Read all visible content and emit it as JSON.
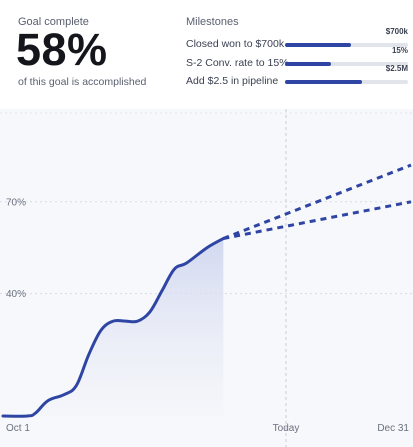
{
  "goal": {
    "label": "Goal complete",
    "value": "58%",
    "description": "of this goal is accomplished"
  },
  "milestones": {
    "title": "Milestones",
    "items": [
      {
        "label": "Closed won to $700k",
        "value": "$700k",
        "progress": 0.54
      },
      {
        "label": "S-2 Conv. rate to 15%",
        "value": "15%",
        "progress": 0.37
      },
      {
        "label": "Add $2.5 in pipeline",
        "value": "$2.5M",
        "progress": 0.63
      }
    ]
  },
  "colors": {
    "accent": "#2f45a3",
    "track": "#e1e4ea",
    "panel": "#f7f8fb"
  },
  "chart_data": {
    "type": "line",
    "y_ticks": [
      {
        "label": "70%",
        "value": 70
      },
      {
        "label": "40%",
        "value": 40
      }
    ],
    "x_ticks": [
      "Oct 1",
      "Today",
      "Dec 31"
    ],
    "grid": true,
    "ylim": [
      0,
      100
    ],
    "series": [
      {
        "style": "solid",
        "points": [
          [
            0,
            0
          ],
          [
            6,
            0
          ],
          [
            8,
            1
          ],
          [
            11,
            5
          ],
          [
            15,
            7
          ],
          [
            18,
            10
          ],
          [
            21,
            20
          ],
          [
            24,
            28
          ],
          [
            27,
            31
          ],
          [
            30,
            31
          ],
          [
            33,
            31
          ],
          [
            36,
            34
          ],
          [
            39,
            41
          ],
          [
            42,
            48
          ],
          [
            45,
            50
          ],
          [
            50,
            55
          ],
          [
            54,
            58
          ]
        ]
      },
      {
        "style": "dashed",
        "points": [
          [
            54,
            58
          ],
          [
            100,
            70
          ]
        ]
      },
      {
        "style": "dashed",
        "points": [
          [
            54,
            58
          ],
          [
            100,
            82
          ]
        ]
      }
    ]
  }
}
